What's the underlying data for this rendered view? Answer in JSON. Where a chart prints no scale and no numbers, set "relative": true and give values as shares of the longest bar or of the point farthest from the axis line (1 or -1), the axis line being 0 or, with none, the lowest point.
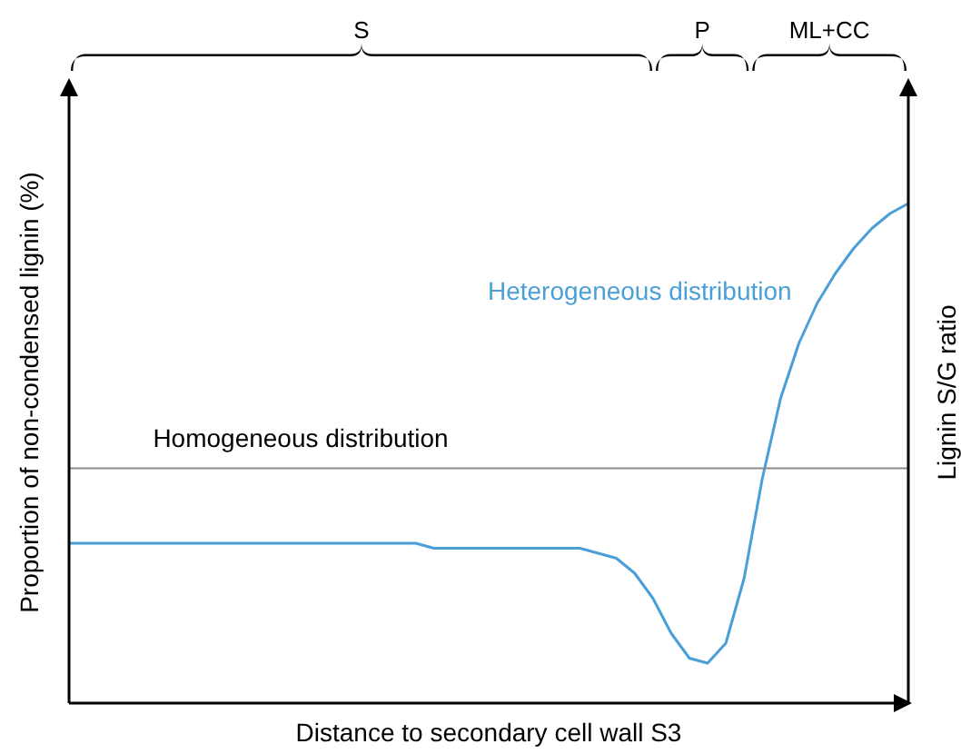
{
  "chart_data": {
    "type": "line",
    "relative": true,
    "xlabel": "Distance to secondary cell wall S3",
    "ylabel": "Proportion of non-condensed lignin (%)",
    "y2label": "Lignin S/G ratio",
    "categories": [
      null,
      null,
      null,
      null,
      null,
      null,
      null,
      null,
      null,
      null,
      null,
      null,
      null,
      null,
      null,
      null,
      null,
      null,
      null,
      null,
      null,
      null,
      null,
      null,
      null,
      null,
      null,
      null,
      null,
      null,
      null,
      null,
      null,
      null,
      null,
      null,
      null,
      null,
      null,
      null,
      null,
      null,
      null,
      null,
      null,
      null,
      null
    ],
    "series": [
      {
        "name": "Heterogeneous distribution",
        "color": "#4a9fd8",
        "values": [
          0.32,
          0.32,
          0.32,
          0.32,
          0.32,
          0.32,
          0.32,
          0.32,
          0.32,
          0.32,
          0.32,
          0.32,
          0.32,
          0.32,
          0.32,
          0.32,
          0.32,
          0.32,
          0.32,
          0.32,
          0.31,
          0.31,
          0.31,
          0.31,
          0.31,
          0.31,
          0.31,
          0.31,
          0.31,
          0.3,
          0.29,
          0.26,
          0.21,
          0.14,
          0.09,
          0.08,
          0.12,
          0.25,
          0.45,
          0.61,
          0.72,
          0.8,
          0.86,
          0.91,
          0.95,
          0.98,
          1
        ]
      },
      {
        "name": "Homogeneous distribution",
        "color": "#8c8c8c",
        "values": [
          0.47,
          0.47,
          0.47,
          0.47,
          0.47,
          0.47,
          0.47,
          0.47,
          0.47,
          0.47,
          0.47,
          0.47,
          0.47,
          0.47,
          0.47,
          0.47,
          0.47,
          0.47,
          0.47,
          0.47,
          0.47,
          0.47,
          0.47,
          0.47,
          0.47,
          0.47,
          0.47,
          0.47,
          0.47,
          0.47,
          0.47,
          0.47,
          0.47,
          0.47,
          0.47,
          0.47,
          0.47,
          0.47,
          0.47,
          0.47,
          0.47,
          0.47,
          0.47,
          0.47,
          0.47,
          0.47,
          0.47
        ]
      }
    ],
    "annotations": [
      "S",
      "P",
      "ML+CC"
    ],
    "grid": false,
    "legend": false,
    "marker": "none"
  }
}
